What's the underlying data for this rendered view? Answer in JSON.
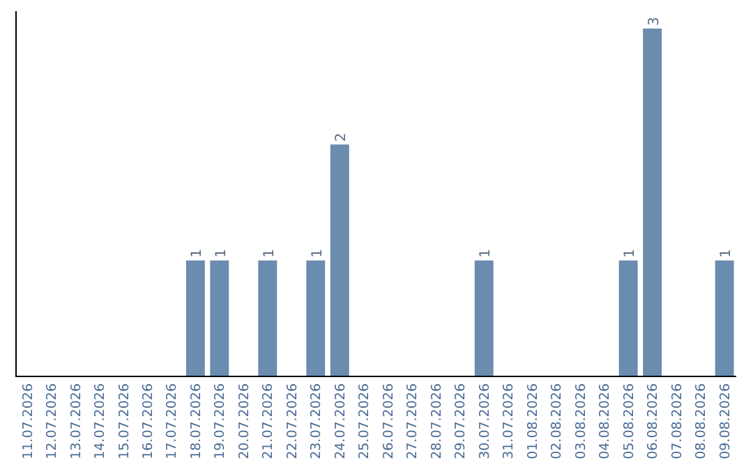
{
  "chart_data": {
    "type": "bar",
    "categories": [
      "11.07.2026",
      "12.07.2026",
      "13.07.2026",
      "14.07.2026",
      "15.07.2026",
      "16.07.2026",
      "17.07.2026",
      "18.07.2026",
      "19.07.2026",
      "20.07.2026",
      "21.07.2026",
      "22.07.2026",
      "23.07.2026",
      "24.07.2026",
      "25.07.2026",
      "26.07.2026",
      "27.07.2026",
      "28.07.2026",
      "29.07.2026",
      "30.07.2026",
      "31.07.2026",
      "01.08.2026",
      "02.08.2026",
      "03.08.2026",
      "04.08.2026",
      "05.08.2026",
      "06.08.2026",
      "07.08.2026",
      "08.08.2026",
      "09.08.2026"
    ],
    "values": [
      0,
      0,
      0,
      0,
      0,
      0,
      0,
      1,
      1,
      0,
      1,
      0,
      1,
      2,
      0,
      0,
      0,
      0,
      0,
      1,
      0,
      0,
      0,
      0,
      0,
      1,
      3,
      0,
      0,
      1
    ],
    "value_labels": [
      null,
      null,
      null,
      null,
      null,
      null,
      null,
      "1",
      "1",
      null,
      "1",
      null,
      "1",
      "2",
      null,
      null,
      null,
      null,
      null,
      "1",
      null,
      null,
      null,
      null,
      null,
      "1",
      "3",
      null,
      null,
      "1"
    ],
    "color": "#6a8caf"
  }
}
